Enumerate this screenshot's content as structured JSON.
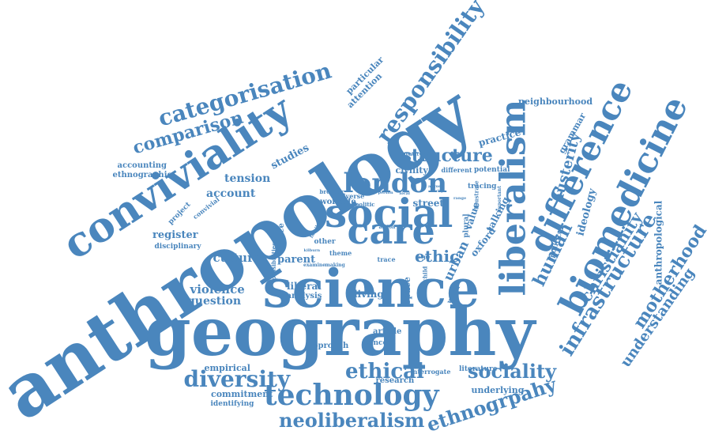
{
  "color": "#4a86bd",
  "words": [
    {
      "text": "anthropology"
    },
    {
      "text": "geography"
    },
    {
      "text": "science"
    },
    {
      "text": "conviviality"
    },
    {
      "text": "social"
    },
    {
      "text": "care"
    },
    {
      "text": "london"
    },
    {
      "text": "liberalism"
    },
    {
      "text": "biomedicine"
    },
    {
      "text": "difference"
    },
    {
      "text": "technology"
    },
    {
      "text": "categorisation"
    },
    {
      "text": "responsibility"
    },
    {
      "text": "diversity"
    },
    {
      "text": "ethical"
    },
    {
      "text": "sociality"
    },
    {
      "text": "neoliberalism"
    },
    {
      "text": "ethnogrpahy"
    },
    {
      "text": "infrastructure"
    },
    {
      "text": "motherhood"
    },
    {
      "text": "christianity"
    },
    {
      "text": "understanding"
    },
    {
      "text": "comparison"
    },
    {
      "text": "structure"
    },
    {
      "text": "human"
    },
    {
      "text": "urban"
    },
    {
      "text": "ethic"
    },
    {
      "text": "austerity"
    },
    {
      "text": "anthropological"
    },
    {
      "text": "ideology"
    },
    {
      "text": "culture"
    },
    {
      "text": "violence"
    },
    {
      "text": "question"
    },
    {
      "text": "register"
    },
    {
      "text": "account"
    },
    {
      "text": "tension"
    },
    {
      "text": "studies"
    },
    {
      "text": "practice"
    },
    {
      "text": "grammar"
    },
    {
      "text": "neighbourhood"
    },
    {
      "text": "particular"
    },
    {
      "text": "attention"
    },
    {
      "text": "accounting"
    },
    {
      "text": "ethnographic"
    },
    {
      "text": "disciplinary"
    },
    {
      "text": "project"
    },
    {
      "text": "convivial"
    },
    {
      "text": "parent"
    },
    {
      "text": "liberal"
    },
    {
      "text": "analysis"
    },
    {
      "text": "living"
    },
    {
      "text": "space"
    },
    {
      "text": "place"
    },
    {
      "text": "worklife"
    },
    {
      "text": "street"
    },
    {
      "text": "value"
    },
    {
      "text": "oxford"
    },
    {
      "text": "talking"
    },
    {
      "text": "civility"
    },
    {
      "text": "potential"
    },
    {
      "text": "tracing"
    },
    {
      "text": "different"
    },
    {
      "text": "capacity"
    },
    {
      "text": "political"
    },
    {
      "text": "approach"
    },
    {
      "text": "article"
    },
    {
      "text": "concept"
    },
    {
      "text": "research"
    },
    {
      "text": "interrogate"
    },
    {
      "text": "literature"
    },
    {
      "text": "underlying"
    },
    {
      "text": "empirical"
    },
    {
      "text": "commitment"
    },
    {
      "text": "identifying"
    },
    {
      "text": "possibilities"
    },
    {
      "text": "other"
    },
    {
      "text": "world"
    },
    {
      "text": "child"
    },
    {
      "text": "plural"
    },
    {
      "text": "illustrate"
    },
    {
      "text": "politic"
    },
    {
      "text": "diverse"
    },
    {
      "text": "broader"
    },
    {
      "text": "examine"
    },
    {
      "text": "making"
    },
    {
      "text": "theme"
    },
    {
      "text": "trace"
    },
    {
      "text": "hope"
    },
    {
      "text": "important"
    },
    {
      "text": "person"
    },
    {
      "text": "action"
    },
    {
      "text": "kilburn"
    },
    {
      "text": "family"
    },
    {
      "text": "city"
    },
    {
      "text": "argue"
    },
    {
      "text": "range"
    },
    {
      "text": "local"
    }
  ]
}
